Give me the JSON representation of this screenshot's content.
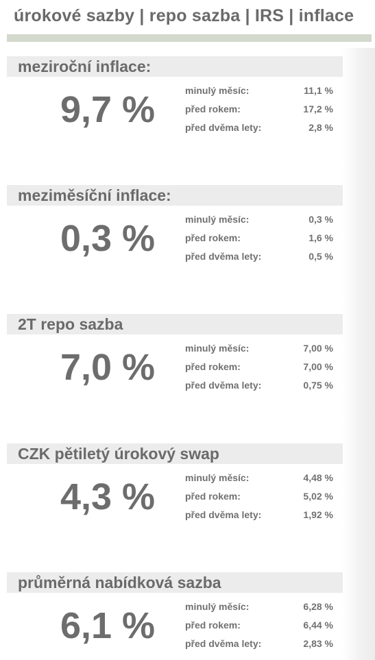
{
  "header": {
    "title": "úrokové sazby | repo sazba | IRS | inflace"
  },
  "sections": [
    {
      "title": "meziroční inflace:",
      "value": "9,7 %",
      "rows": [
        {
          "label": "minulý měsíc:",
          "value": "11,1 %"
        },
        {
          "label": "před rokem:",
          "value": "17,2 %"
        },
        {
          "label": "před dvěma lety:",
          "value": "2,8 %"
        }
      ]
    },
    {
      "title": "meziměsíční inflace:",
      "value": "0,3 %",
      "rows": [
        {
          "label": "minulý měsíc:",
          "value": "0,3 %"
        },
        {
          "label": "před rokem:",
          "value": "1,6 %"
        },
        {
          "label": "před dvěma lety:",
          "value": "0,5 %"
        }
      ]
    },
    {
      "title": "2T repo sazba",
      "value": "7,0 %",
      "rows": [
        {
          "label": "minulý měsíc:",
          "value": "7,00 %"
        },
        {
          "label": "před rokem:",
          "value": "7,00 %"
        },
        {
          "label": "před dvěma lety:",
          "value": "0,75 %"
        }
      ]
    },
    {
      "title": "CZK pětiletý úrokový swap",
      "value": "4,3 %",
      "rows": [
        {
          "label": "minulý měsíc:",
          "value": "4,48 %"
        },
        {
          "label": "před rokem:",
          "value": "5,02 %"
        },
        {
          "label": "před dvěma lety:",
          "value": "1,92 %"
        }
      ]
    },
    {
      "title": "průměrná nabídková sazba",
      "value": "6,1 %",
      "rows": [
        {
          "label": "minulý měsíc:",
          "value": "6,28 %"
        },
        {
          "label": "před rokem:",
          "value": "6,44 %"
        },
        {
          "label": "před dvěma lety:",
          "value": "2,83 %"
        }
      ]
    }
  ]
}
